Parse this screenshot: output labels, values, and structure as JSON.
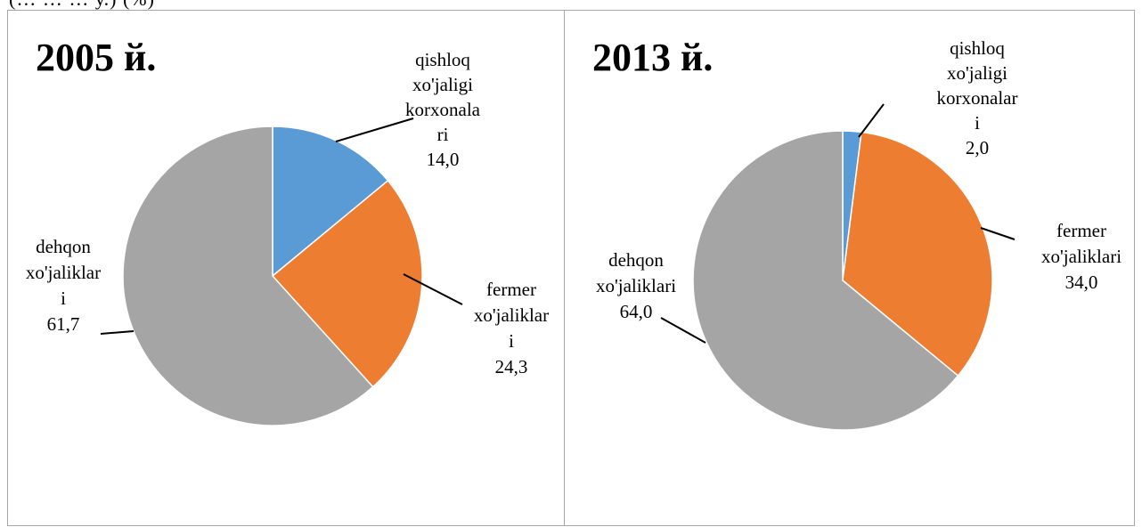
{
  "page_fragment": "(… … … у.) (%)",
  "colors": {
    "qishloq": "#5b9bd5",
    "fermer": "#ed7d31",
    "dehqon": "#a5a5a5",
    "border": "#a6a6a6"
  },
  "chart_data": [
    {
      "type": "pie",
      "title": "2005 й.",
      "slices": [
        {
          "key": "qishloq",
          "label_lines": [
            "qishloq",
            "xo'jaligi",
            "korxonala",
            "ri"
          ],
          "value_text": "14,0",
          "value": 14.0,
          "color": "#5b9bd5"
        },
        {
          "key": "fermer",
          "label_lines": [
            "fermer",
            "xo'jaliklar",
            "i"
          ],
          "value_text": "24,3",
          "value": 24.3,
          "color": "#ed7d31"
        },
        {
          "key": "dehqon",
          "label_lines": [
            "dehqon",
            "xo'jaliklar",
            "i"
          ],
          "value_text": "61,7",
          "value": 61.7,
          "color": "#a5a5a5"
        }
      ]
    },
    {
      "type": "pie",
      "title": "2013 й.",
      "slices": [
        {
          "key": "qishloq",
          "label_lines": [
            "qishloq",
            "xo'jaligi",
            "korxonalar",
            "i"
          ],
          "value_text": "2,0",
          "value": 2.0,
          "color": "#5b9bd5"
        },
        {
          "key": "fermer",
          "label_lines": [
            "fermer",
            "xo'jaliklari"
          ],
          "value_text": "34,0",
          "value": 34.0,
          "color": "#ed7d31"
        },
        {
          "key": "dehqon",
          "label_lines": [
            "dehqon",
            "xo'jaliklari"
          ],
          "value_text": "64,0",
          "value": 64.0,
          "color": "#a5a5a5"
        }
      ]
    }
  ]
}
